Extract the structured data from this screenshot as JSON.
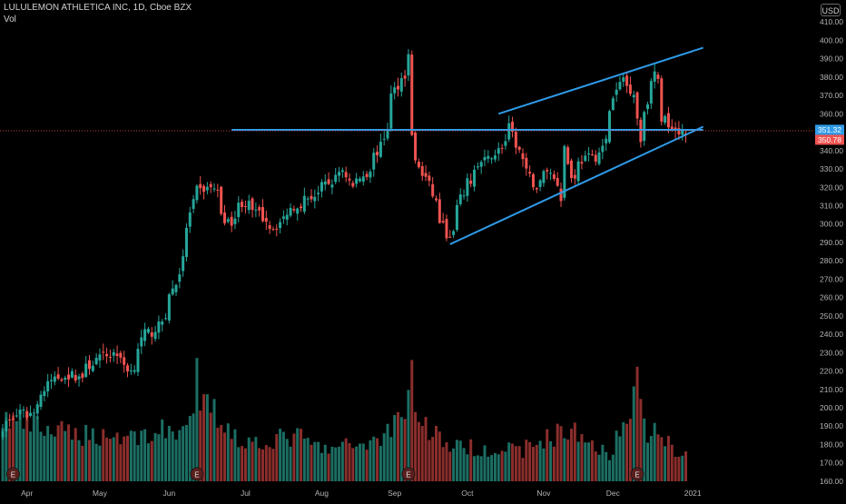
{
  "header": {
    "title": "LULULEMON ATHLETICA INC, 1D, Cboe BZX",
    "volume_label": "Vol",
    "currency": "USD"
  },
  "colors": {
    "background": "#000000",
    "up": "#26a69a",
    "down": "#ef5350",
    "up_volume": "#1c6e63",
    "down_volume": "#8a2e2c",
    "trendline": "#2f9be8",
    "axis_text": "#b4b4b4",
    "last_price_badge": "#ef5350",
    "level_badge": "#2f9be8"
  },
  "chart_data": {
    "type": "candlestick",
    "title": "LULULEMON ATHLETICA INC, 1D, Cboe BZX",
    "interval": "1D",
    "ylim": [
      155,
      420
    ],
    "y_ticks": [
      160,
      170,
      180,
      190,
      200,
      210,
      220,
      230,
      240,
      250,
      260,
      270,
      280,
      290,
      300,
      310,
      320,
      330,
      340,
      350,
      360,
      370,
      380,
      390,
      400,
      410
    ],
    "x_tick_labels": [
      "Apr",
      "May",
      "Jun",
      "Jul",
      "Aug",
      "Sep",
      "Oct",
      "Nov",
      "Dec",
      "2021"
    ],
    "x_tick_dates": [
      "2020-04-01",
      "2020-05-01",
      "2020-06-01",
      "2020-07-01",
      "2020-08-03",
      "2020-09-01",
      "2020-10-01",
      "2020-11-02",
      "2020-12-01",
      "2021-01-04"
    ],
    "price_badges": [
      {
        "value": 351.32,
        "label": "351.32",
        "kind": "level"
      },
      {
        "value": 350.78,
        "label": "350.78",
        "kind": "last"
      }
    ],
    "earnings_markers": [
      {
        "date": "2020-03-26",
        "label": "E"
      },
      {
        "date": "2020-06-11",
        "label": "E"
      },
      {
        "date": "2020-09-08",
        "label": "E"
      },
      {
        "date": "2020-12-10",
        "label": "E"
      }
    ],
    "grid": false,
    "price_keypoints": [
      [
        "2020-03-23",
        190
      ],
      [
        "2020-03-27",
        196
      ],
      [
        "2020-04-03",
        197
      ],
      [
        "2020-04-09",
        212
      ],
      [
        "2020-04-17",
        218
      ],
      [
        "2020-04-24",
        217
      ],
      [
        "2020-04-30",
        226
      ],
      [
        "2020-05-08",
        230
      ],
      [
        "2020-05-14",
        220
      ],
      [
        "2020-05-20",
        240
      ],
      [
        "2020-05-27",
        244
      ],
      [
        "2020-06-03",
        268
      ],
      [
        "2020-06-09",
        305
      ],
      [
        "2020-06-11",
        318
      ],
      [
        "2020-06-18",
        320
      ],
      [
        "2020-06-24",
        300
      ],
      [
        "2020-06-30",
        312
      ],
      [
        "2020-07-08",
        305
      ],
      [
        "2020-07-14",
        298
      ],
      [
        "2020-07-22",
        310
      ],
      [
        "2020-07-29",
        315
      ],
      [
        "2020-08-05",
        322
      ],
      [
        "2020-08-11",
        330
      ],
      [
        "2020-08-14",
        320
      ],
      [
        "2020-08-20",
        328
      ],
      [
        "2020-08-26",
        342
      ],
      [
        "2020-08-31",
        370
      ],
      [
        "2020-09-04",
        382
      ],
      [
        "2020-09-08",
        391
      ],
      [
        "2020-09-09",
        350
      ],
      [
        "2020-09-10",
        333
      ],
      [
        "2020-09-15",
        325
      ],
      [
        "2020-09-18",
        312
      ],
      [
        "2020-09-23",
        295
      ],
      [
        "2020-09-24",
        291
      ],
      [
        "2020-10-01",
        322
      ],
      [
        "2020-10-07",
        333
      ],
      [
        "2020-10-14",
        340
      ],
      [
        "2020-10-19",
        352
      ],
      [
        "2020-10-23",
        335
      ],
      [
        "2020-10-29",
        320
      ],
      [
        "2020-11-03",
        330
      ],
      [
        "2020-11-09",
        315
      ],
      [
        "2020-11-10",
        342
      ],
      [
        "2020-11-12",
        325
      ],
      [
        "2020-11-17",
        335
      ],
      [
        "2020-11-23",
        337
      ],
      [
        "2020-11-27",
        345
      ],
      [
        "2020-12-01",
        368
      ],
      [
        "2020-12-04",
        380
      ],
      [
        "2020-12-09",
        372
      ],
      [
        "2020-12-10",
        358
      ],
      [
        "2020-12-11",
        345
      ],
      [
        "2020-12-15",
        368
      ],
      [
        "2020-12-17",
        383
      ],
      [
        "2020-12-21",
        358
      ],
      [
        "2020-12-24",
        354
      ],
      [
        "2020-12-29",
        351
      ]
    ],
    "volume_keypoints_millions": [
      [
        "2020-03-23",
        1.8
      ],
      [
        "2020-04-15",
        1.4
      ],
      [
        "2020-05-15",
        1.3
      ],
      [
        "2020-06-10",
        1.6
      ],
      [
        "2020-06-11",
        3.0
      ],
      [
        "2020-06-12",
        2.4
      ],
      [
        "2020-07-01",
        1.1
      ],
      [
        "2020-07-23",
        1.3
      ],
      [
        "2020-08-03",
        0.9
      ],
      [
        "2020-08-25",
        1.2
      ],
      [
        "2020-09-04",
        2.0
      ],
      [
        "2020-09-09",
        3.4
      ],
      [
        "2020-09-10",
        1.9
      ],
      [
        "2020-09-25",
        1.0
      ],
      [
        "2020-10-23",
        0.9
      ],
      [
        "2020-11-10",
        1.5
      ],
      [
        "2020-11-30",
        0.8
      ],
      [
        "2020-12-11",
        3.0
      ],
      [
        "2020-12-14",
        1.5
      ],
      [
        "2020-12-31",
        0.8
      ]
    ],
    "trendlines": [
      {
        "name": "horizontal",
        "points": [
          [
            "2020-06-25",
            351.3
          ],
          [
            "2021-01-07",
            351.3
          ]
        ]
      },
      {
        "name": "upper",
        "points": [
          [
            "2020-10-14",
            360
          ],
          [
            "2021-01-07",
            396
          ]
        ]
      },
      {
        "name": "lower",
        "points": [
          [
            "2020-09-24",
            289
          ],
          [
            "2021-01-07",
            353
          ]
        ]
      }
    ]
  }
}
